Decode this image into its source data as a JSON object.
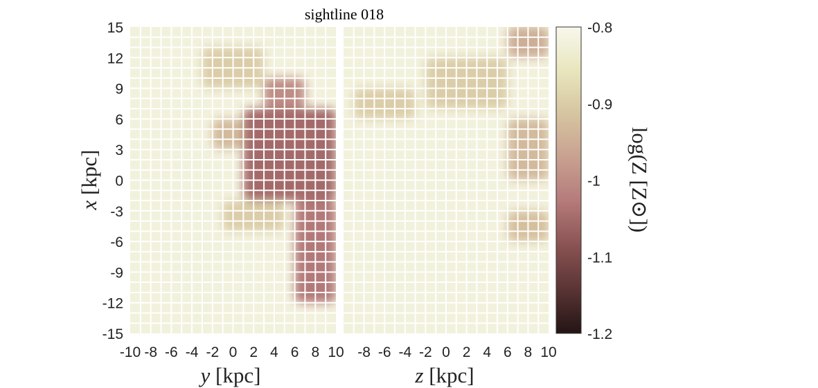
{
  "figure": {
    "title": "sightline 018",
    "left_panel": {
      "xlabel_var": "y",
      "xlabel_unit": "[kpc]",
      "ylabel_var": "x",
      "ylabel_unit": "[kpc]",
      "x_ticks": [
        "-10",
        "-8",
        "-6",
        "-4",
        "-2",
        "0",
        "2",
        "4",
        "6",
        "8",
        "10"
      ],
      "y_ticks": [
        "15",
        "12",
        "9",
        "6",
        "3",
        "0",
        "-3",
        "-6",
        "-9",
        "-12",
        "-15"
      ]
    },
    "right_panel": {
      "xlabel_var": "z",
      "xlabel_unit": "[kpc]",
      "x_ticks": [
        "-8",
        "-6",
        "-4",
        "-2",
        "0",
        "2",
        "4",
        "6",
        "8",
        "10"
      ]
    },
    "colorbar": {
      "label": "log(Z [Z⊙])",
      "ticks": [
        "-0.8",
        "-0.9",
        "-1",
        "-1.1",
        "-1.2"
      ],
      "tick_values": [
        -0.8,
        -0.9,
        -1.0,
        -1.1,
        -1.2
      ],
      "range": [
        -1.2,
        -0.8
      ],
      "colormap": [
        "#241414",
        "#5a3434",
        "#8a5252",
        "#b47a7a",
        "#c8a090",
        "#d6c4a0",
        "#e8e6be",
        "#f8f7ec"
      ]
    }
  },
  "chart_data": [
    {
      "type": "heatmap",
      "title": "sightline 018",
      "xlabel": "y [kpc]",
      "ylabel": "x [kpc]",
      "xlim": [
        -10,
        10
      ],
      "ylim": [
        -15,
        15
      ],
      "grid": true,
      "background_value": -0.82,
      "features": [
        {
          "x_range": [
            1,
            10
          ],
          "y_range": [
            -2,
            7
          ],
          "value": -1.05
        },
        {
          "x_range": [
            6,
            10
          ],
          "y_range": [
            -12,
            -2
          ],
          "value": -1.03
        },
        {
          "x_range": [
            3,
            7
          ],
          "y_range": [
            7,
            10
          ],
          "value": -1.0
        },
        {
          "x_range": [
            -3,
            3
          ],
          "y_range": [
            9,
            13
          ],
          "value": -0.9
        },
        {
          "x_range": [
            -2,
            1
          ],
          "y_range": [
            3,
            6
          ],
          "value": -0.93
        },
        {
          "x_range": [
            -1,
            5
          ],
          "y_range": [
            -5,
            -2
          ],
          "value": -0.9
        }
      ]
    },
    {
      "type": "heatmap",
      "xlabel": "z [kpc]",
      "ylabel": "x [kpc]",
      "xlim": [
        -10,
        10
      ],
      "ylim": [
        -15,
        15
      ],
      "grid": true,
      "background_value": -0.82,
      "features": [
        {
          "x_range": [
            6,
            10
          ],
          "y_range": [
            12,
            15
          ],
          "value": -0.95
        },
        {
          "x_range": [
            -2,
            6
          ],
          "y_range": [
            7,
            12
          ],
          "value": -0.9
        },
        {
          "x_range": [
            6,
            10
          ],
          "y_range": [
            0,
            6
          ],
          "value": -0.93
        },
        {
          "x_range": [
            -9,
            -3
          ],
          "y_range": [
            6,
            9
          ],
          "value": -0.9
        },
        {
          "x_range": [
            6,
            10
          ],
          "y_range": [
            -6,
            -3
          ],
          "value": -0.92
        }
      ]
    }
  ]
}
